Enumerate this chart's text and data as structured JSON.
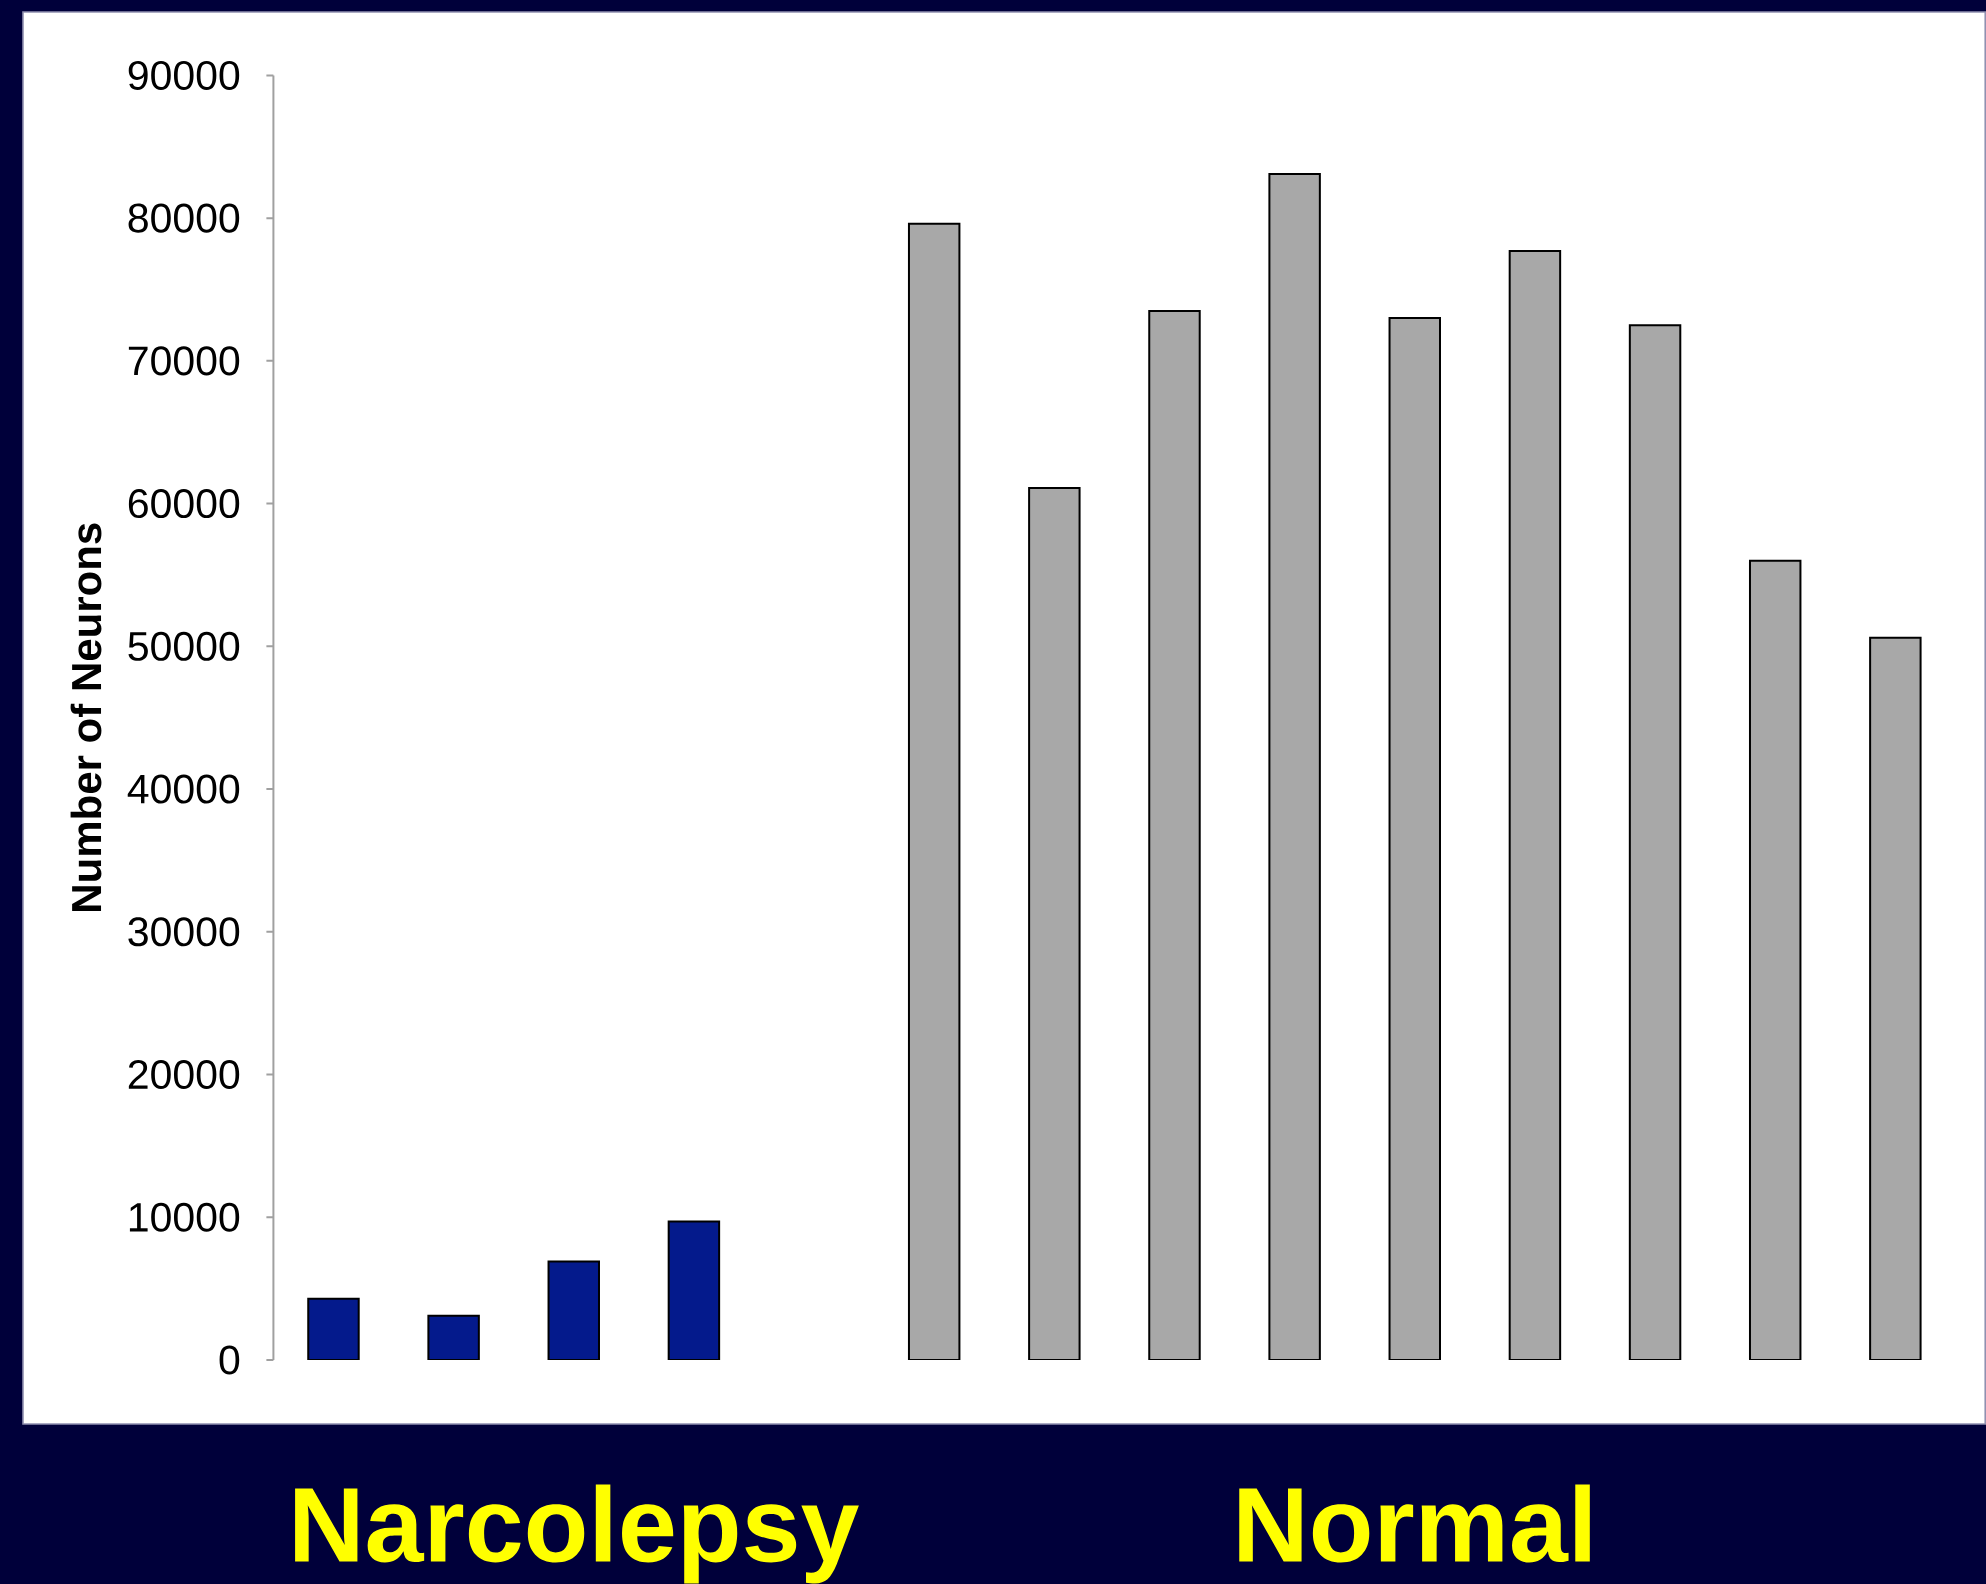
{
  "chart_data": {
    "type": "bar",
    "ylabel": "Number of Neurons",
    "categories": [
      null,
      null,
      "Narcolepsy",
      null,
      null,
      null,
      null,
      null,
      null,
      "Normal",
      null,
      null,
      null,
      null
    ],
    "values": [
      4300,
      3100,
      6900,
      9700,
      null,
      79600,
      61100,
      73500,
      83100,
      73000,
      77700,
      72500,
      56000,
      50600
    ],
    "colors": [
      "#041a8c",
      "#041a8c",
      "#041a8c",
      "#041a8c",
      null,
      "#a8a8a8",
      "#a8a8a8",
      "#a8a8a8",
      "#a8a8a8",
      "#a8a8a8",
      "#a8a8a8",
      "#a8a8a8",
      "#a8a8a8",
      "#a8a8a8"
    ],
    "ylim": [
      0,
      90000
    ],
    "yticks": [
      0,
      10000,
      20000,
      30000,
      40000,
      50000,
      60000,
      70000,
      80000,
      90000
    ]
  }
}
